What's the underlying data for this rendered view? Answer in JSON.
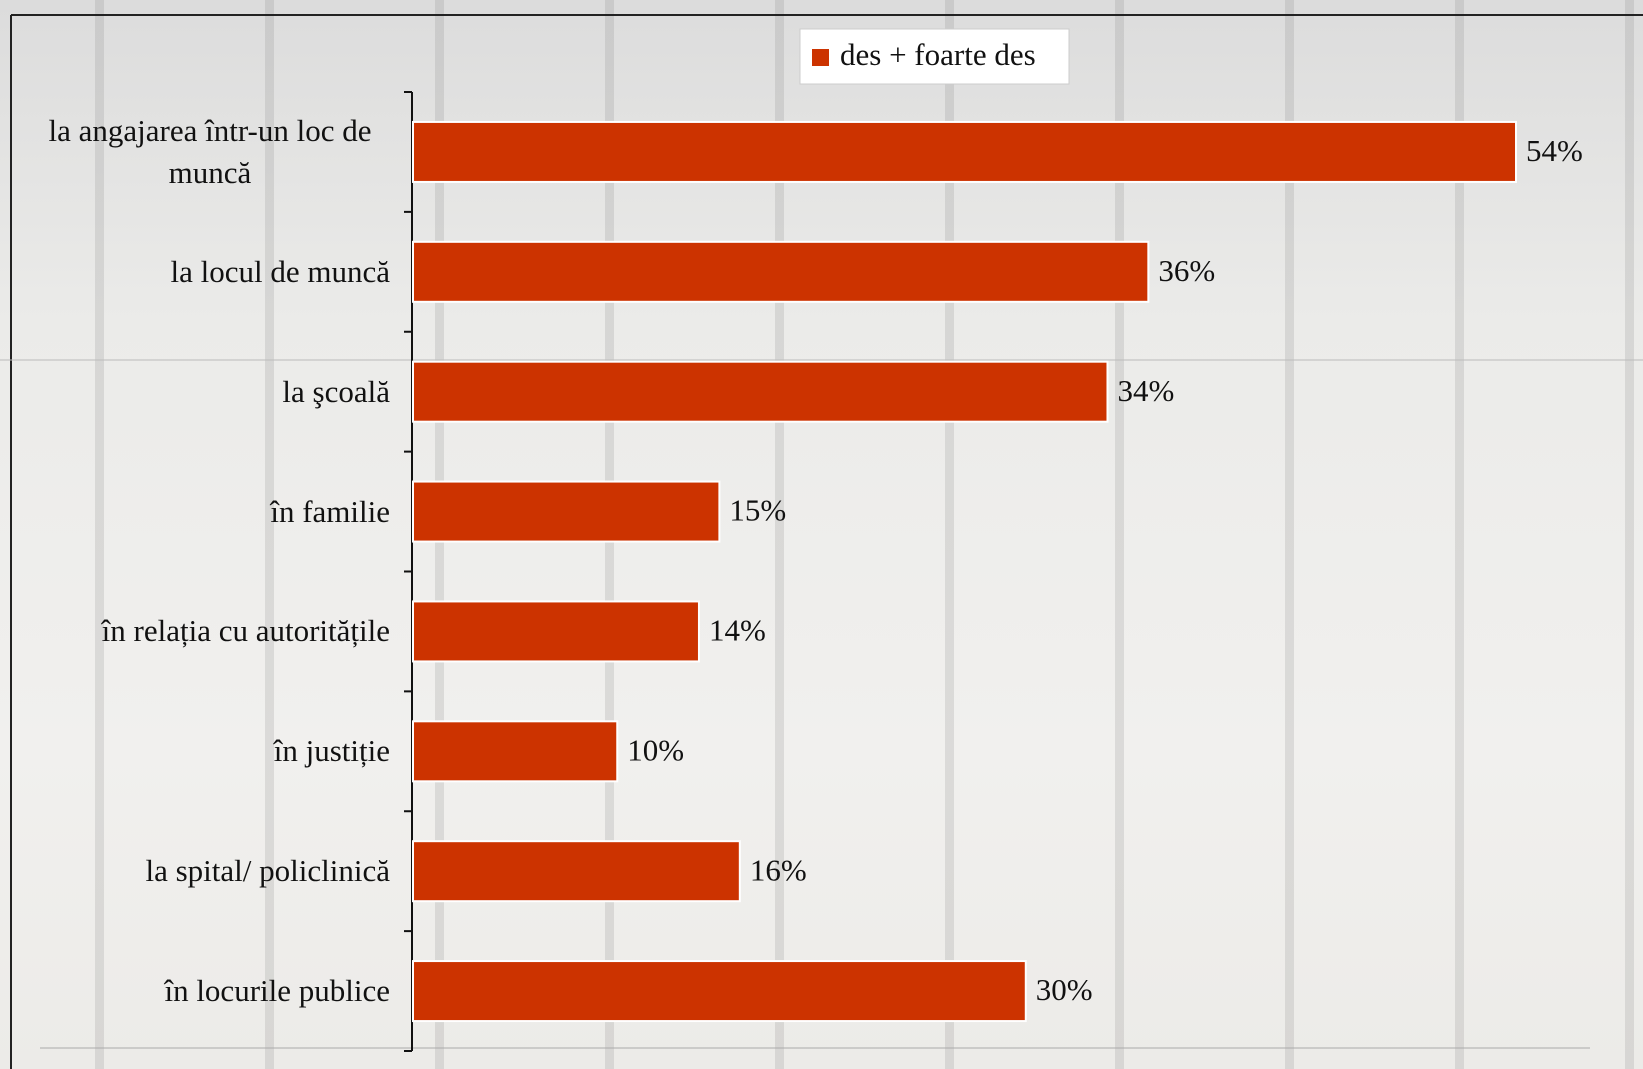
{
  "chart_data": {
    "type": "bar",
    "orientation": "horizontal",
    "categories": [
      "la angajarea într-un loc de muncă",
      "la locul de muncă",
      "la şcoală",
      "în familie",
      "în relația cu autoritățile",
      "în justiție",
      "la spital/ policlinică",
      "în locurile publice"
    ],
    "series": [
      {
        "name": "des + foarte des",
        "color": "#cc3300",
        "values": [
          54,
          36,
          34,
          15,
          14,
          10,
          16,
          30
        ],
        "value_labels": [
          "54%",
          "36%",
          "34%",
          "15%",
          "14%",
          "10%",
          "16%",
          "30%"
        ]
      }
    ],
    "legend": "top"
  }
}
